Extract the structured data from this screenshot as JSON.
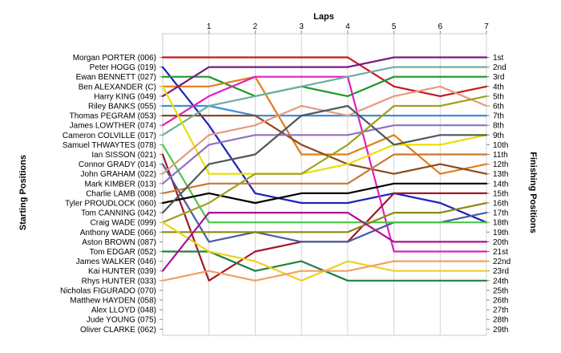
{
  "chart_data": {
    "type": "line",
    "title": "",
    "xlabel": "Laps",
    "ylabel_left": "Starting Positions",
    "ylabel_right": "Finishing Positions",
    "x": [
      0,
      1,
      2,
      3,
      4,
      5,
      6,
      7
    ],
    "xticks": [
      1,
      2,
      3,
      4,
      5,
      6,
      7
    ],
    "ylim": [
      1,
      29
    ],
    "y_inverted": true,
    "grid": true,
    "legend": "none",
    "starting_labels": [
      "Morgan PORTER (006)",
      "Peter HOGG (019)",
      "Ewan BENNETT (027)",
      "Ben ALEXANDER (C)",
      "Harry KING (049)",
      "Riley BANKS (055)",
      "Thomas PEGRAM (053)",
      "James LOWTHER (074)",
      "Cameron COLVILLE (017)",
      "Samuel THWAYTES (078)",
      "Ian SISSON (021)",
      "Connor GRADY (014)",
      "John GRAHAM (022)",
      "Mark KIMBER (013)",
      "Charlie LAMB (008)",
      "Tyler PROUDLOCK (060)",
      "Tom CANNING (042)",
      "Craig WADE (099)",
      "Anthony WADE (066)",
      "Aston BROWN (087)",
      "Tom EDGAR (052)",
      "James WALKER (046)",
      "Kai HUNTER (039)",
      "Rhys HUNTER (033)",
      "Nicholas FIGURADO (070)",
      "Matthew HAYDEN (058)",
      "Alex LLOYD (048)",
      "Jude YOUNG (075)",
      "Oliver CLARKE (062)"
    ],
    "finishing_labels": [
      "1st",
      "2nd",
      "3rd",
      "4th",
      "5th",
      "6th",
      "7th",
      "8th",
      "9th",
      "10th",
      "11th",
      "12th",
      "13th",
      "14th",
      "15th",
      "16th",
      "17th",
      "18th",
      "19th",
      "20th",
      "21st",
      "22nd",
      "23rd",
      "24th",
      "25th",
      "26th",
      "27th",
      "28th",
      "29th"
    ],
    "series": [
      {
        "color": "#c8171e",
        "values": [
          1,
          1,
          1,
          1,
          1,
          4,
          5,
          4
        ]
      },
      {
        "color": "#1e22b8",
        "values": [
          2,
          8,
          15,
          16,
          16,
          15,
          16,
          18
        ]
      },
      {
        "color": "#1a9a2a",
        "values": [
          3,
          3,
          5,
          4,
          5,
          3,
          3,
          3
        ]
      },
      {
        "color": "#e07f1a",
        "values": [
          4,
          4,
          3,
          11,
          11,
          9,
          13,
          12
        ]
      },
      {
        "color": "#7a1a7a",
        "values": [
          5,
          2,
          2,
          2,
          2,
          1,
          1,
          1
        ]
      },
      {
        "color": "#3b8fd8",
        "values": [
          6,
          6,
          7,
          7,
          7,
          7,
          7,
          7
        ]
      },
      {
        "color": "#8b4a1a",
        "values": [
          7,
          7,
          7,
          10,
          12,
          13,
          12,
          13
        ]
      },
      {
        "color": "#e020c0",
        "values": [
          8,
          5,
          3,
          3,
          3,
          21,
          21,
          21
        ]
      },
      {
        "color": "#6ab0a0",
        "values": [
          9,
          6,
          5,
          4,
          3,
          2,
          2,
          2
        ]
      },
      {
        "color": "#e8e000",
        "values": [
          4,
          13,
          13,
          13,
          12,
          10,
          10,
          9
        ]
      },
      {
        "color": "#a0182a",
        "values": [
          11,
          24,
          21,
          20,
          20,
          15,
          15,
          15
        ]
      },
      {
        "color": "#4a5aa0",
        "values": [
          12,
          20,
          19,
          20,
          20,
          18,
          18,
          17
        ]
      },
      {
        "color": "#48c848",
        "values": [
          10,
          18,
          18,
          18,
          18,
          18,
          18,
          18
        ]
      },
      {
        "color": "#e89880",
        "values": [
          13,
          9,
          8,
          6,
          7,
          5,
          4,
          6
        ]
      },
      {
        "color": "#9070c0",
        "values": [
          14,
          10,
          9,
          9,
          9,
          8,
          8,
          8
        ]
      },
      {
        "color": "#000000",
        "values": [
          16,
          15,
          16,
          15,
          15,
          14,
          14,
          14
        ]
      },
      {
        "color": "#c87830",
        "values": [
          15,
          14,
          14,
          14,
          14,
          11,
          11,
          11
        ]
      },
      {
        "color": "#505858",
        "values": [
          17,
          12,
          11,
          7,
          6,
          10,
          9,
          9
        ]
      },
      {
        "color": "#a0a020",
        "values": [
          18,
          16,
          13,
          13,
          10,
          6,
          6,
          5
        ]
      },
      {
        "color": "#8a8a10",
        "values": [
          19,
          19,
          19,
          19,
          19,
          17,
          17,
          16
        ]
      },
      {
        "color": "#208040",
        "values": [
          21,
          21,
          23,
          22,
          24,
          24,
          24,
          24
        ]
      },
      {
        "color": "#f0d020",
        "values": [
          18,
          21,
          22,
          24,
          22,
          23,
          23,
          23
        ]
      },
      {
        "color": "#b01090",
        "values": [
          23,
          17,
          17,
          17,
          17,
          20,
          20,
          20
        ]
      },
      {
        "color": "#f0a060",
        "values": [
          24,
          23,
          24,
          23,
          23,
          22,
          22,
          22
        ]
      }
    ]
  }
}
